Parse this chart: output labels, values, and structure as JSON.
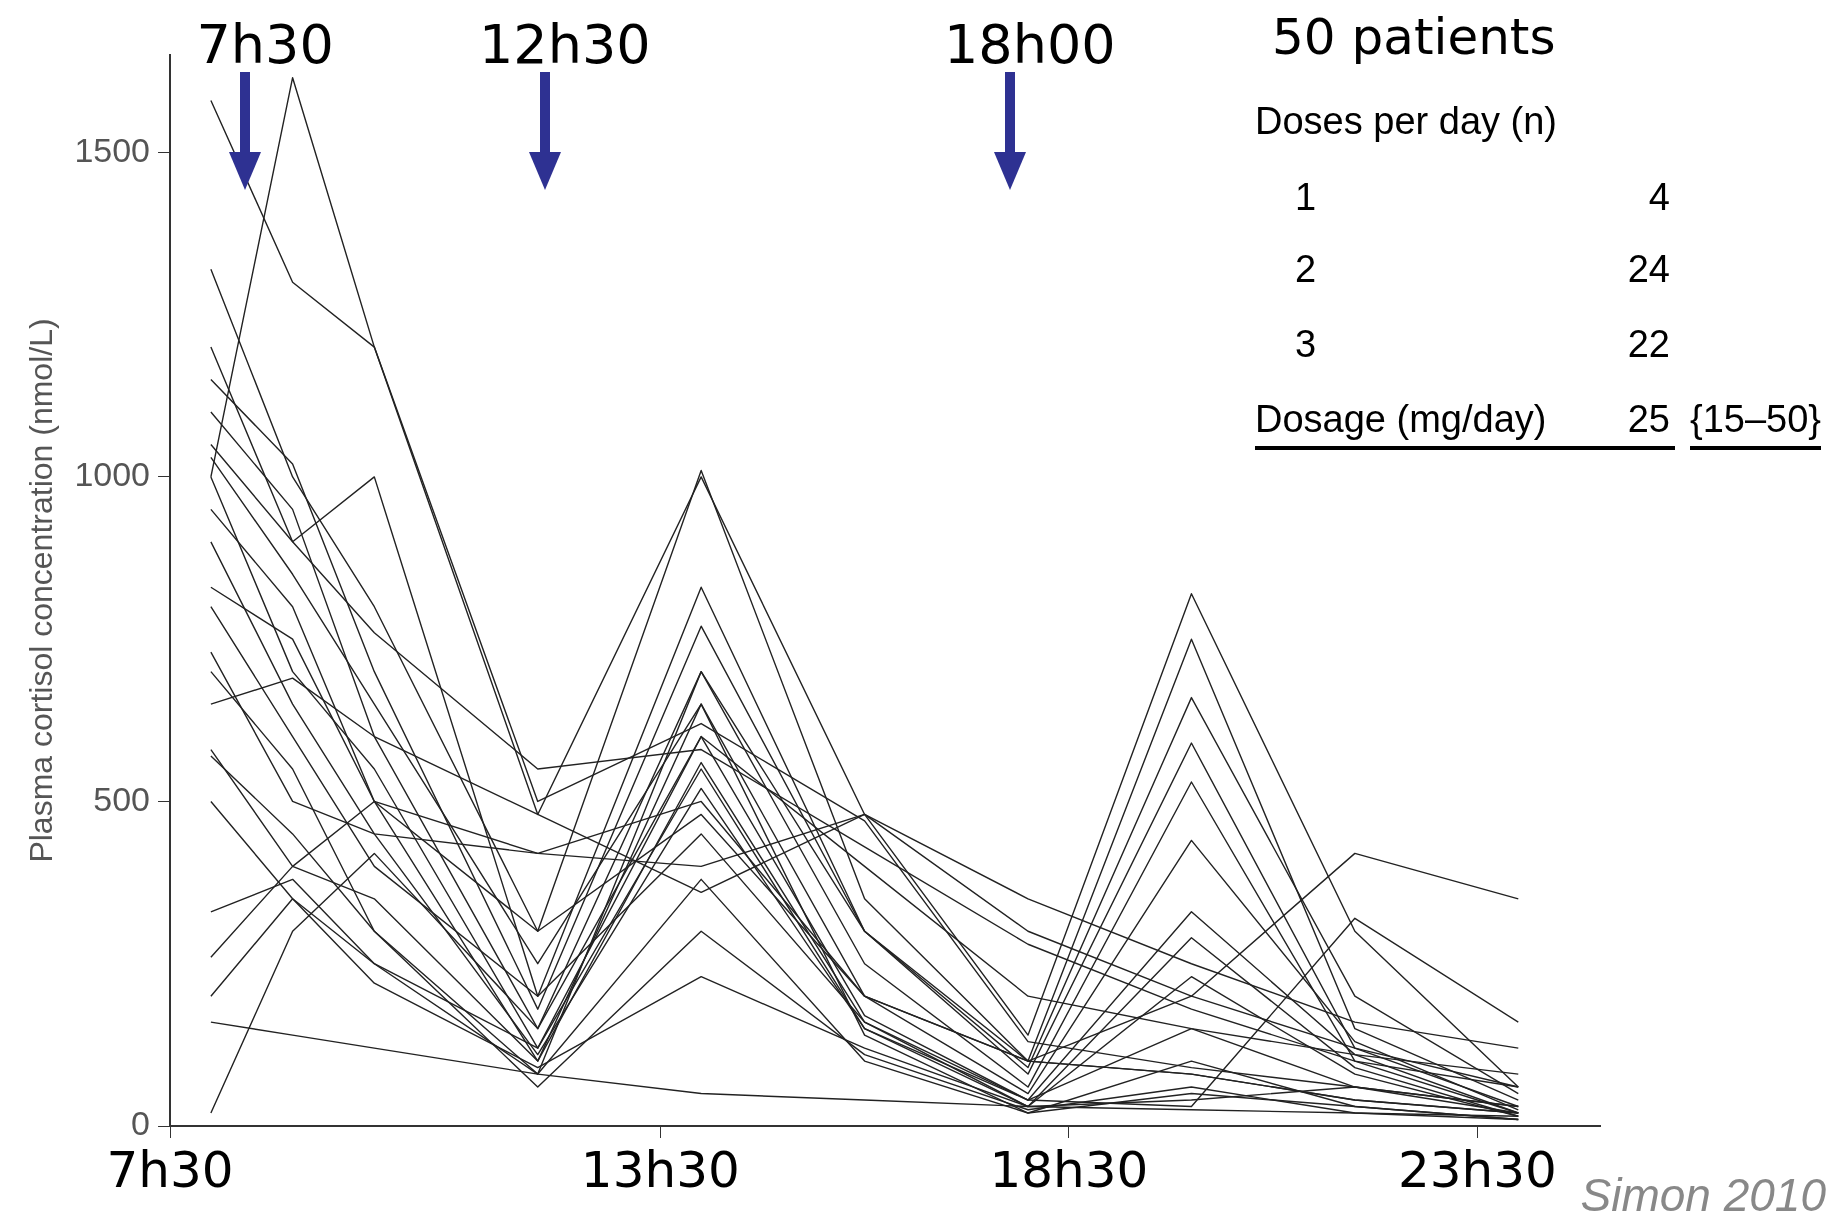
{
  "chart_data": {
    "type": "line",
    "ylabel": "Plasma cortisol concentration (nmol/L)",
    "categories": [
      "7h30",
      null,
      null,
      null,
      null,
      null,
      null,
      null,
      null,
      null,
      null,
      null,
      "13h30",
      null,
      null,
      null,
      null,
      null,
      null,
      null,
      null,
      null,
      "18h30",
      null,
      null,
      null,
      null,
      null,
      null,
      null,
      null,
      null,
      "23h30",
      null,
      null,
      null
    ],
    "ylim": [
      0,
      1650
    ],
    "yticks": [
      0,
      500,
      1000,
      1500
    ],
    "grid": false,
    "legend": false,
    "marker": "none",
    "line_style": "solid",
    "series": [
      {
        "color": "#222222",
        "values": [
          null,
          1580,
          null,
          1300,
          null,
          1200,
          null,
          null,
          null,
          500,
          null,
          null,
          null,
          620,
          null,
          null,
          null,
          470,
          null,
          null,
          null,
          130,
          null,
          null,
          null,
          90,
          null,
          null,
          null,
          60,
          null,
          null,
          null,
          30,
          null,
          null
        ]
      },
      {
        "color": "#222222",
        "values": [
          null,
          1000,
          null,
          1615,
          null,
          1200,
          null,
          null,
          null,
          480,
          null,
          null,
          null,
          1000,
          null,
          null,
          null,
          480,
          null,
          null,
          null,
          140,
          null,
          null,
          null,
          820,
          null,
          null,
          null,
          300,
          null,
          null,
          null,
          60,
          null,
          null
        ]
      },
      {
        "color": "#222222",
        "values": [
          null,
          1320,
          null,
          1000,
          null,
          800,
          null,
          null,
          null,
          300,
          null,
          null,
          null,
          1010,
          null,
          null,
          null,
          350,
          null,
          null,
          null,
          100,
          null,
          null,
          null,
          750,
          null,
          null,
          null,
          150,
          null,
          null,
          null,
          40,
          null,
          null
        ]
      },
      {
        "color": "#222222",
        "values": [
          null,
          1200,
          null,
          900,
          null,
          1000,
          null,
          null,
          null,
          200,
          null,
          null,
          null,
          830,
          null,
          null,
          null,
          300,
          null,
          null,
          null,
          90,
          null,
          null,
          null,
          660,
          null,
          null,
          null,
          200,
          null,
          null,
          null,
          50,
          null,
          null
        ]
      },
      {
        "color": "#222222",
        "values": [
          null,
          1150,
          null,
          1020,
          null,
          700,
          null,
          null,
          null,
          180,
          null,
          null,
          null,
          770,
          null,
          null,
          null,
          300,
          null,
          null,
          null,
          80,
          null,
          null,
          null,
          590,
          null,
          null,
          null,
          120,
          null,
          null,
          null,
          30,
          null,
          null
        ]
      },
      {
        "color": "#222222",
        "values": [
          null,
          1100,
          null,
          950,
          null,
          600,
          null,
          null,
          null,
          150,
          null,
          null,
          null,
          700,
          null,
          null,
          null,
          250,
          null,
          null,
          null,
          60,
          null,
          null,
          null,
          530,
          null,
          null,
          null,
          100,
          null,
          null,
          null,
          20,
          null,
          null
        ]
      },
      {
        "color": "#222222",
        "values": [
          null,
          1030,
          null,
          850,
          null,
          650,
          null,
          null,
          null,
          250,
          null,
          null,
          null,
          650,
          null,
          null,
          null,
          200,
          null,
          null,
          null,
          50,
          null,
          null,
          null,
          440,
          null,
          null,
          null,
          130,
          null,
          null,
          null,
          25,
          null,
          null
        ]
      },
      {
        "color": "#222222",
        "values": [
          null,
          1000,
          null,
          700,
          null,
          550,
          null,
          null,
          null,
          120,
          null,
          null,
          null,
          600,
          null,
          null,
          null,
          170,
          null,
          null,
          null,
          40,
          null,
          null,
          null,
          330,
          null,
          null,
          null,
          110,
          null,
          null,
          null,
          20,
          null,
          null
        ]
      },
      {
        "color": "#222222",
        "values": [
          null,
          950,
          null,
          800,
          null,
          500,
          null,
          null,
          null,
          100,
          null,
          null,
          null,
          560,
          null,
          null,
          null,
          160,
          null,
          null,
          null,
          30,
          null,
          null,
          null,
          290,
          null,
          null,
          null,
          90,
          null,
          null,
          null,
          15,
          null,
          null
        ]
      },
      {
        "color": "#222222",
        "values": [
          null,
          900,
          null,
          650,
          null,
          450,
          null,
          null,
          null,
          110,
          null,
          null,
          null,
          520,
          null,
          null,
          null,
          150,
          null,
          null,
          null,
          30,
          null,
          null,
          null,
          230,
          null,
          null,
          null,
          80,
          null,
          null,
          null,
          15,
          null,
          null
        ]
      },
      {
        "color": "#222222",
        "values": [
          null,
          830,
          null,
          750,
          null,
          500,
          null,
          null,
          null,
          300,
          null,
          null,
          null,
          480,
          null,
          null,
          null,
          200,
          null,
          null,
          null,
          100,
          null,
          null,
          null,
          200,
          null,
          null,
          null,
          120,
          null,
          null,
          null,
          60,
          null,
          null
        ]
      },
      {
        "color": "#222222",
        "values": [
          null,
          800,
          null,
          600,
          null,
          400,
          null,
          null,
          null,
          200,
          null,
          null,
          null,
          450,
          null,
          null,
          null,
          160,
          null,
          null,
          null,
          40,
          null,
          null,
          null,
          150,
          null,
          null,
          null,
          60,
          null,
          null,
          null,
          20,
          null,
          null
        ]
      },
      {
        "color": "#222222",
        "values": [
          null,
          730,
          null,
          500,
          null,
          450,
          null,
          null,
          null,
          420,
          null,
          null,
          null,
          400,
          null,
          null,
          null,
          480,
          null,
          null,
          null,
          350,
          null,
          null,
          null,
          250,
          null,
          null,
          null,
          160,
          null,
          null,
          null,
          120,
          null,
          null
        ]
      },
      {
        "color": "#222222",
        "values": [
          null,
          700,
          null,
          550,
          null,
          300,
          null,
          null,
          null,
          80,
          null,
          null,
          null,
          700,
          null,
          null,
          null,
          300,
          null,
          null,
          null,
          100,
          null,
          null,
          null,
          80,
          null,
          null,
          null,
          40,
          null,
          null,
          null,
          20,
          null,
          null
        ]
      },
      {
        "color": "#222222",
        "values": [
          null,
          650,
          null,
          690,
          null,
          600,
          null,
          null,
          null,
          480,
          null,
          null,
          null,
          360,
          null,
          null,
          null,
          480,
          null,
          null,
          null,
          300,
          null,
          null,
          null,
          200,
          null,
          null,
          null,
          420,
          null,
          null,
          null,
          350,
          null,
          null
        ]
      },
      {
        "color": "#222222",
        "values": [
          null,
          580,
          null,
          400,
          null,
          350,
          null,
          null,
          null,
          100,
          null,
          null,
          null,
          650,
          null,
          null,
          null,
          140,
          null,
          null,
          null,
          20,
          null,
          null,
          null,
          100,
          null,
          null,
          null,
          30,
          null,
          null,
          null,
          10,
          null,
          null
        ]
      },
      {
        "color": "#222222",
        "values": [
          null,
          570,
          null,
          450,
          null,
          300,
          null,
          null,
          null,
          60,
          null,
          null,
          null,
          300,
          null,
          null,
          null,
          110,
          null,
          null,
          null,
          25,
          null,
          null,
          null,
          60,
          null,
          null,
          null,
          20,
          null,
          null,
          null,
          10,
          null,
          null
        ]
      },
      {
        "color": "#222222",
        "values": [
          null,
          500,
          null,
          350,
          null,
          250,
          null,
          null,
          null,
          120,
          null,
          null,
          null,
          550,
          null,
          null,
          null,
          150,
          null,
          null,
          null,
          40,
          null,
          null,
          null,
          30,
          null,
          null,
          null,
          320,
          null,
          null,
          null,
          160,
          null,
          null
        ]
      },
      {
        "color": "#222222",
        "values": [
          null,
          330,
          null,
          380,
          null,
          250,
          null,
          null,
          null,
          80,
          null,
          null,
          null,
          380,
          null,
          null,
          null,
          100,
          null,
          null,
          null,
          20,
          null,
          null,
          null,
          50,
          null,
          null,
          null,
          30,
          null,
          null,
          null,
          10,
          null,
          null
        ]
      },
      {
        "color": "#222222",
        "values": [
          null,
          260,
          null,
          400,
          null,
          500,
          null,
          null,
          null,
          420,
          null,
          null,
          null,
          500,
          null,
          null,
          null,
          200,
          null,
          null,
          null,
          100,
          null,
          null,
          null,
          80,
          null,
          null,
          null,
          40,
          null,
          null,
          null,
          20,
          null,
          null
        ]
      },
      {
        "color": "#222222",
        "values": [
          null,
          200,
          null,
          350,
          null,
          220,
          null,
          null,
          null,
          90,
          null,
          null,
          null,
          230,
          null,
          null,
          null,
          120,
          null,
          null,
          null,
          30,
          null,
          null,
          null,
          40,
          null,
          null,
          null,
          60,
          null,
          null,
          null,
          30,
          null,
          null
        ]
      },
      {
        "color": "#222222",
        "values": [
          null,
          160,
          null,
          140,
          null,
          120,
          null,
          null,
          null,
          80,
          null,
          null,
          null,
          50,
          null,
          null,
          null,
          40,
          null,
          null,
          null,
          30,
          null,
          null,
          null,
          25,
          null,
          null,
          null,
          20,
          null,
          null,
          null,
          15,
          null,
          null
        ]
      },
      {
        "color": "#222222",
        "values": [
          null,
          20,
          null,
          300,
          null,
          420,
          null,
          null,
          null,
          150,
          null,
          null,
          null,
          600,
          null,
          null,
          null,
          400,
          null,
          null,
          null,
          200,
          null,
          null,
          null,
          150,
          null,
          null,
          null,
          110,
          null,
          null,
          null,
          80,
          null,
          null
        ]
      },
      {
        "color": "#222222",
        "values": [
          null,
          1050,
          null,
          900,
          null,
          760,
          null,
          null,
          null,
          550,
          null,
          null,
          null,
          580,
          null,
          null,
          null,
          430,
          null,
          null,
          null,
          280,
          null,
          null,
          null,
          180,
          null,
          null,
          null,
          100,
          null,
          null,
          null,
          60,
          null,
          null
        ]
      }
    ],
    "annotations": [
      "7h30",
      "12h30",
      "18h00",
      "50 patients",
      "Doses per day (n)",
      "1",
      "4",
      "2",
      "24",
      "3",
      "22",
      "Dosage (mg/day)",
      "25",
      "{15–50}",
      "Simon 2010"
    ]
  }
}
